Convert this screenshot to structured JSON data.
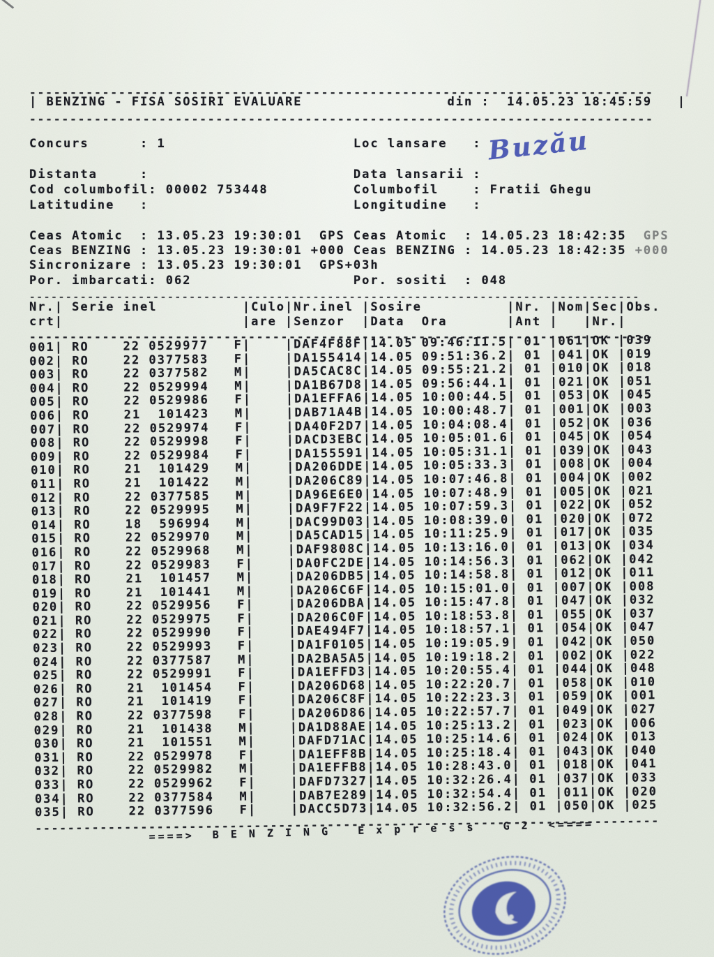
{
  "header": {
    "title": "BENZING - FISA SOSIRI EVALUARE",
    "din_label": "din :",
    "printed_at": "14.05.23 18:45:59"
  },
  "info": {
    "concurs_label": "Concurs",
    "concurs_value": "1",
    "loc_lansare_label": "Loc lansare",
    "loc_lansare_value": "Buzău",
    "distanta_label": "Distanta",
    "distanta_value": "",
    "data_lansarii_label": "Data lansarii",
    "data_lansarii_value": "",
    "cod_columbofil_label": "Cod columbofil",
    "cod_columbofil_value": "00002 753448",
    "columbofil_label": "Columbofil",
    "columbofil_value": "Fratii Ghegu",
    "latitudine_label": "Latitudine",
    "latitudine_value": "",
    "longitudine_label": "Longitudine",
    "longitudine_value": ""
  },
  "clocks": {
    "left": [
      {
        "label": "Ceas Atomic",
        "value": "13.05.23 19:30:01",
        "suffix": "GPS"
      },
      {
        "label": "Ceas BENZING",
        "value": "13.05.23 19:30:01",
        "suffix": "+000"
      },
      {
        "label": "Sincronizare",
        "value": "13.05.23 19:30:01",
        "suffix": "GPS+03h"
      }
    ],
    "right": [
      {
        "label": "Ceas Atomic",
        "value": "14.05.23 18:42:35",
        "suffix": "GPS"
      },
      {
        "label": "Ceas BENZING",
        "value": "14.05.23 18:42:35",
        "suffix": "+000"
      }
    ],
    "imbarcati_label": "Por. imbarcati",
    "imbarcati_value": "062",
    "sositi_label": "Por. sositi",
    "sositi_value": "048"
  },
  "table": {
    "headers": {
      "nr": [
        "Nr.",
        "crt"
      ],
      "serie": "Serie inel",
      "culoare": [
        "Culo",
        "are"
      ],
      "senzor": [
        "Nr.inel",
        "Senzor"
      ],
      "sosire": [
        "Sosire",
        "Data  Ora"
      ],
      "ant": [
        "Nr.",
        "Ant"
      ],
      "nom": "Nom",
      "sec": [
        "Sec",
        "Nr."
      ],
      "obs": "Obs."
    },
    "rows": [
      [
        "001",
        "RO",
        "22",
        "0529977",
        "F",
        "",
        "DAF4F88F",
        "14.05",
        "09:46:11.5",
        "01",
        "061",
        "OK",
        "039"
      ],
      [
        "002",
        "RO",
        "22",
        "0377583",
        "F",
        "",
        "DA155414",
        "14.05",
        "09:51:36.2",
        "01",
        "041",
        "OK",
        "019"
      ],
      [
        "003",
        "RO",
        "22",
        "0377582",
        "M",
        "",
        "DA5CAC8C",
        "14.05",
        "09:55:21.2",
        "01",
        "010",
        "OK",
        "018"
      ],
      [
        "004",
        "RO",
        "22",
        "0529994",
        "M",
        "",
        "DA1B67D8",
        "14.05",
        "09:56:44.1",
        "01",
        "021",
        "OK",
        "051"
      ],
      [
        "005",
        "RO",
        "22",
        "0529986",
        "F",
        "",
        "DA1EFFA6",
        "14.05",
        "10:00:44.5",
        "01",
        "053",
        "OK",
        "045"
      ],
      [
        "006",
        "RO",
        "21",
        "101423",
        "M",
        "",
        "DAB71A4B",
        "14.05",
        "10:00:48.7",
        "01",
        "001",
        "OK",
        "003"
      ],
      [
        "007",
        "RO",
        "22",
        "0529974",
        "F",
        "",
        "DA40F2D7",
        "14.05",
        "10:04:08.4",
        "01",
        "052",
        "OK",
        "036"
      ],
      [
        "008",
        "RO",
        "22",
        "0529998",
        "F",
        "",
        "DACD3EBC",
        "14.05",
        "10:05:01.6",
        "01",
        "045",
        "OK",
        "054"
      ],
      [
        "009",
        "RO",
        "22",
        "0529984",
        "F",
        "",
        "DA155591",
        "14.05",
        "10:05:31.1",
        "01",
        "039",
        "OK",
        "043"
      ],
      [
        "010",
        "RO",
        "21",
        "101429",
        "M",
        "",
        "DA206DDE",
        "14.05",
        "10:05:33.3",
        "01",
        "008",
        "OK",
        "004"
      ],
      [
        "011",
        "RO",
        "21",
        "101422",
        "M",
        "",
        "DA206C89",
        "14.05",
        "10:07:46.8",
        "01",
        "004",
        "OK",
        "002"
      ],
      [
        "012",
        "RO",
        "22",
        "0377585",
        "M",
        "",
        "DA96E6E0",
        "14.05",
        "10:07:48.9",
        "01",
        "005",
        "OK",
        "021"
      ],
      [
        "013",
        "RO",
        "22",
        "0529995",
        "M",
        "",
        "DA9F7F22",
        "14.05",
        "10:07:59.3",
        "01",
        "022",
        "OK",
        "052"
      ],
      [
        "014",
        "RO",
        "18",
        "596994",
        "M",
        "",
        "DAC99D03",
        "14.05",
        "10:08:39.0",
        "01",
        "020",
        "OK",
        "072"
      ],
      [
        "015",
        "RO",
        "22",
        "0529970",
        "M",
        "",
        "DA5CAD15",
        "14.05",
        "10:11:25.9",
        "01",
        "017",
        "OK",
        "035"
      ],
      [
        "016",
        "RO",
        "22",
        "0529968",
        "M",
        "",
        "DAF9808C",
        "14.05",
        "10:13:16.0",
        "01",
        "013",
        "OK",
        "034"
      ],
      [
        "017",
        "RO",
        "22",
        "0529983",
        "F",
        "",
        "DA0FC2DE",
        "14.05",
        "10:14:56.3",
        "01",
        "062",
        "OK",
        "042"
      ],
      [
        "018",
        "RO",
        "21",
        "101457",
        "M",
        "",
        "DA206DB5",
        "14.05",
        "10:14:58.8",
        "01",
        "012",
        "OK",
        "011"
      ],
      [
        "019",
        "RO",
        "21",
        "101441",
        "M",
        "",
        "DA206C6F",
        "14.05",
        "10:15:01.0",
        "01",
        "007",
        "OK",
        "008"
      ],
      [
        "020",
        "RO",
        "22",
        "0529956",
        "F",
        "",
        "DA206DBA",
        "14.05",
        "10:15:47.8",
        "01",
        "047",
        "OK",
        "032"
      ],
      [
        "021",
        "RO",
        "22",
        "0529975",
        "F",
        "",
        "DA206C0F",
        "14.05",
        "10:18:53.8",
        "01",
        "055",
        "OK",
        "037"
      ],
      [
        "022",
        "RO",
        "22",
        "0529990",
        "F",
        "",
        "DAE494F7",
        "14.05",
        "10:18:57.1",
        "01",
        "054",
        "OK",
        "047"
      ],
      [
        "023",
        "RO",
        "22",
        "0529993",
        "F",
        "",
        "DA1F0105",
        "14.05",
        "10:19:05.9",
        "01",
        "042",
        "OK",
        "050"
      ],
      [
        "024",
        "RO",
        "22",
        "0377587",
        "M",
        "",
        "DA2BA5A5",
        "14.05",
        "10:19:18.2",
        "01",
        "002",
        "OK",
        "022"
      ],
      [
        "025",
        "RO",
        "22",
        "0529991",
        "F",
        "",
        "DA1EFFD3",
        "14.05",
        "10:20:55.4",
        "01",
        "044",
        "OK",
        "048"
      ],
      [
        "026",
        "RO",
        "21",
        "101454",
        "F",
        "",
        "DA206D68",
        "14.05",
        "10:22:20.7",
        "01",
        "058",
        "OK",
        "010"
      ],
      [
        "027",
        "RO",
        "21",
        "101419",
        "F",
        "",
        "DA206C8F",
        "14.05",
        "10:22:23.3",
        "01",
        "059",
        "OK",
        "001"
      ],
      [
        "028",
        "RO",
        "22",
        "0377598",
        "F",
        "",
        "DA206D86",
        "14.05",
        "10:22:57.7",
        "01",
        "049",
        "OK",
        "027"
      ],
      [
        "029",
        "RO",
        "21",
        "101438",
        "M",
        "",
        "DA1D88AE",
        "14.05",
        "10:25:13.2",
        "01",
        "023",
        "OK",
        "006"
      ],
      [
        "030",
        "RO",
        "21",
        "101551",
        "M",
        "",
        "DAFD71AC",
        "14.05",
        "10:25:14.6",
        "01",
        "024",
        "OK",
        "013"
      ],
      [
        "031",
        "RO",
        "22",
        "0529978",
        "F",
        "",
        "DA1EFF8B",
        "14.05",
        "10:25:18.4",
        "01",
        "043",
        "OK",
        "040"
      ],
      [
        "032",
        "RO",
        "22",
        "0529982",
        "M",
        "",
        "DA1EFFB8",
        "14.05",
        "10:28:43.0",
        "01",
        "018",
        "OK",
        "041"
      ],
      [
        "033",
        "RO",
        "22",
        "0529962",
        "F",
        "",
        "DAFD7327",
        "14.05",
        "10:32:26.4",
        "01",
        "037",
        "OK",
        "033"
      ],
      [
        "034",
        "RO",
        "22",
        "0377584",
        "M",
        "",
        "DAB7E289",
        "14.05",
        "10:32:54.4",
        "01",
        "011",
        "OK",
        "020"
      ],
      [
        "035",
        "RO",
        "22",
        "0377596",
        "F",
        "",
        "DACC5D73",
        "14.05",
        "10:32:56.2",
        "01",
        "050",
        "OK",
        "025"
      ]
    ]
  },
  "footer": {
    "banner": "====>  B E N Z I N G   E x p r e s s   G 2  <===="
  },
  "stamp": {
    "color": "#2c3e9f"
  }
}
